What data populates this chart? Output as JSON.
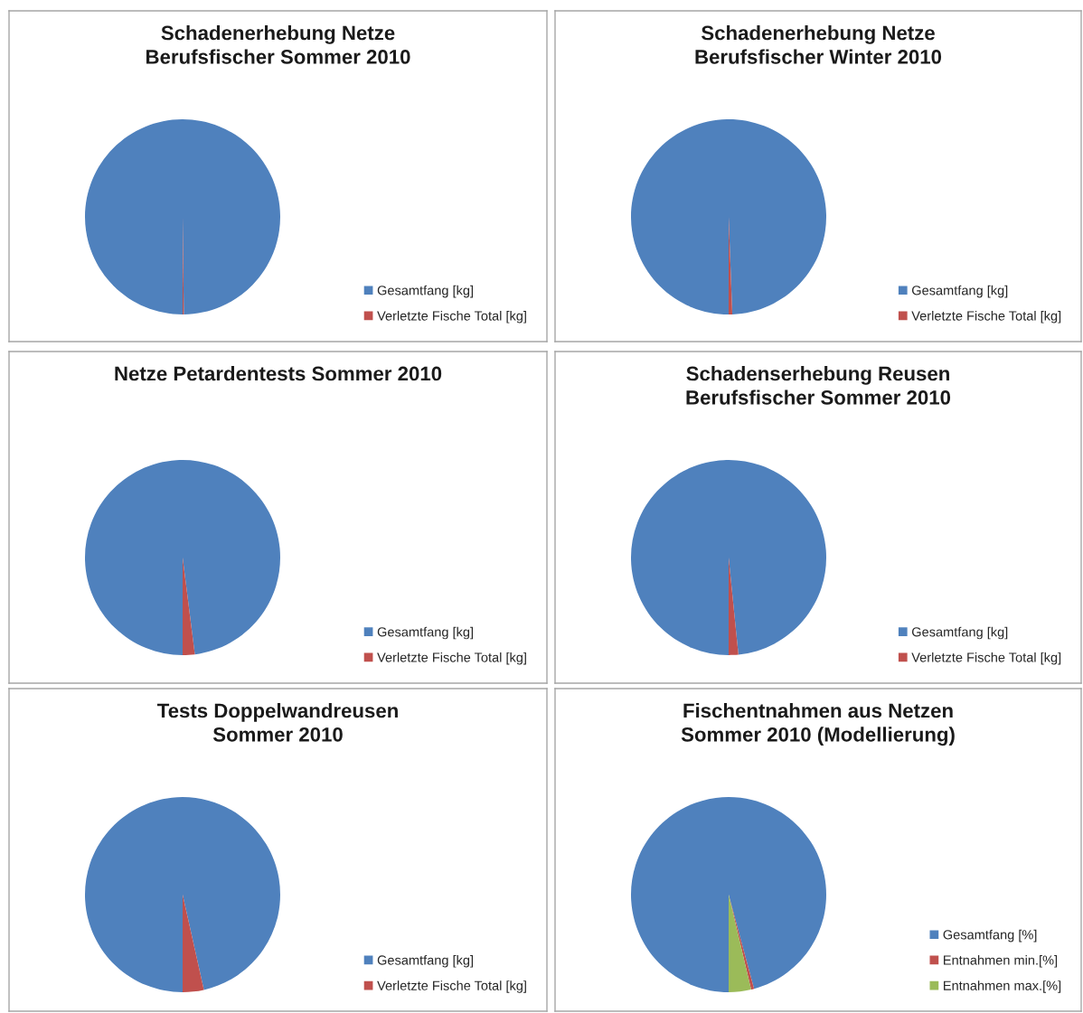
{
  "chart_data": [
    {
      "type": "pie",
      "title": "Schadenerhebung Netze\nBerufsfischer Sommer 2010",
      "categories": [
        "Gesamtfang [kg]",
        "Verletzte Fische Total [kg]"
      ],
      "values": [
        99.8,
        0.2
      ],
      "colors": [
        "#4f81bd",
        "#c0504d"
      ],
      "legend": "bottom right"
    },
    {
      "type": "pie",
      "title": "Schadenerhebung Netze\nBerufsfischer Winter 2010",
      "categories": [
        "Gesamtfang [kg]",
        "Verletzte Fische Total [kg]"
      ],
      "values": [
        99.4,
        0.6
      ],
      "colors": [
        "#4f81bd",
        "#c0504d"
      ],
      "legend": "bottom right"
    },
    {
      "type": "pie",
      "title": "Netze Petardentests Sommer 2010",
      "categories": [
        "Gesamtfang [kg]",
        "Verletzte Fische Total [kg]"
      ],
      "values": [
        98.0,
        2.0
      ],
      "colors": [
        "#4f81bd",
        "#c0504d"
      ],
      "legend": "bottom right"
    },
    {
      "type": "pie",
      "title": "Schadenserhebung Reusen\nBerufsfischer Sommer 2010",
      "categories": [
        "Gesamtfang [kg]",
        "Verletzte Fische Total [kg]"
      ],
      "values": [
        98.4,
        1.6
      ],
      "colors": [
        "#4f81bd",
        "#c0504d"
      ],
      "legend": "bottom right"
    },
    {
      "type": "pie",
      "title": "Tests Doppelwandreusen\nSommer 2010",
      "categories": [
        "Gesamtfang [kg]",
        "Verletzte Fische Total [kg]"
      ],
      "values": [
        96.5,
        3.5
      ],
      "colors": [
        "#4f81bd",
        "#c0504d"
      ],
      "legend": "bottom right"
    },
    {
      "type": "pie",
      "title": "Fischentnahmen aus Netzen\nSommer 2010 (Modellierung)",
      "categories": [
        "Gesamtfang [%]",
        "Entnahmen min.[%]",
        "Entnahmen max.[%]"
      ],
      "values": [
        95.8,
        0.5,
        3.7
      ],
      "colors": [
        "#4f81bd",
        "#c0504d",
        "#9bbb59"
      ],
      "legend": "bottom right"
    }
  ]
}
